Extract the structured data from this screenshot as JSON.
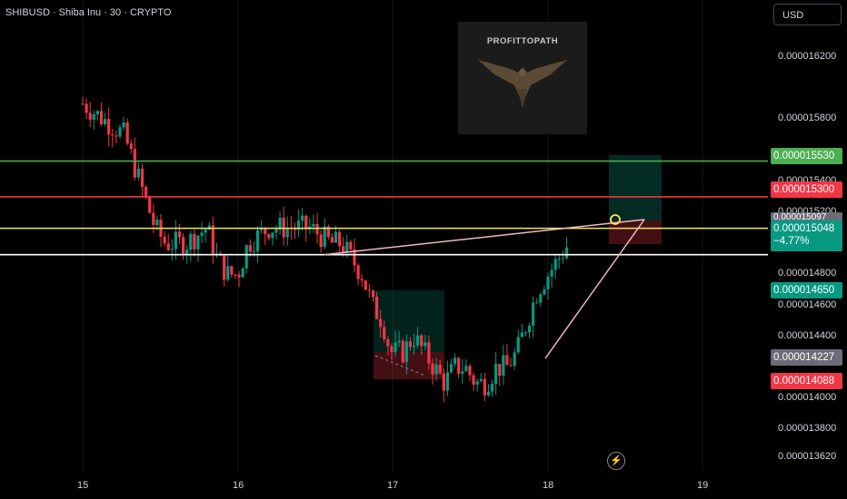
{
  "header": {
    "title": "SHIBUSD · Shiba Inu · 30 · CRYPTO",
    "currency": "USD"
  },
  "logo": {
    "text": "PROFITTOPATH"
  },
  "colors": {
    "up": "#089981",
    "down": "#f23645",
    "green_line": "#4caf50",
    "red_line": "#f23645",
    "yellow_line": "#f5e663",
    "white_line": "#ffffff",
    "background": "#000000"
  },
  "chart_data": {
    "type": "candlestick",
    "symbol": "SHIBUSD",
    "timeframe": "30",
    "xlabel": "",
    "ylabel": "",
    "x_ticks": [
      "15",
      "16",
      "17",
      "18",
      "19"
    ],
    "y_ticks": [
      "0.000016200",
      "0.000015800",
      "0.000015400",
      "0.000015200",
      "0.000014800",
      "0.000014600",
      "0.000014400",
      "0.000014000",
      "0.000013800",
      "0.000013620"
    ],
    "ylim": [
      1.35e-05,
      1.65e-05
    ],
    "horizontal_levels": [
      {
        "value": 1.553e-05,
        "label": "0.000015530",
        "color": "green"
      },
      {
        "value": 1.53e-05,
        "label": "0.000015300",
        "color": "red"
      },
      {
        "value": 1.5097e-05,
        "label": "0.000015097",
        "color": "yellow"
      },
      {
        "value": 1.4927e-05,
        "label": "",
        "color": "white"
      }
    ],
    "price_labels": [
      {
        "value": 1.465e-05,
        "text": "0.000014650",
        "color": "#089981"
      },
      {
        "value": 1.4227e-05,
        "text": "0.000014227",
        "color": "#6a6d78"
      },
      {
        "value": 1.4088e-05,
        "text": "0.000014088",
        "color": "#f23645"
      }
    ],
    "last_price": {
      "value": 1.5048e-05,
      "change": "−4.77%"
    },
    "candle_path": [
      [
        0,
        1.59e-05
      ],
      [
        4,
        1.58e-05
      ],
      [
        8,
        1.57e-05
      ],
      [
        10,
        1.55e-05
      ],
      [
        14,
        1.51e-05
      ],
      [
        16,
        1.5e-05
      ],
      [
        20,
        1.5e-05
      ],
      [
        24,
        1.51e-05
      ],
      [
        26,
        1.49e-05
      ],
      [
        28,
        1.48e-05
      ],
      [
        30,
        1.48e-05
      ],
      [
        32,
        1.5e-05
      ],
      [
        36,
        1.51e-05
      ],
      [
        40,
        1.51e-05
      ],
      [
        44,
        1.51e-05
      ],
      [
        48,
        1.5e-05
      ],
      [
        50,
        1.5e-05
      ],
      [
        52,
        1.49e-05
      ],
      [
        54,
        1.48e-05
      ],
      [
        56,
        1.46e-05
      ],
      [
        58,
        1.45e-05
      ],
      [
        59.5,
        1.43e-05
      ],
      [
        62,
        1.43e-05
      ],
      [
        64,
        1.44e-05
      ],
      [
        66,
        1.43e-05
      ],
      [
        68,
        1.42e-05
      ],
      [
        70,
        1.41e-05
      ],
      [
        72,
        1.42e-05
      ],
      [
        74,
        1.42e-05
      ],
      [
        76,
        1.41e-05
      ],
      [
        78,
        1.41e-05
      ],
      [
        80,
        1.42e-05
      ],
      [
        82,
        1.42e-05
      ],
      [
        84,
        1.43e-05
      ],
      [
        86,
        1.45e-05
      ],
      [
        88,
        1.47e-05
      ],
      [
        90,
        1.48e-05
      ],
      [
        92,
        1.49e-05
      ],
      [
        94,
        1.5e-05
      ]
    ]
  },
  "axis_labels": {
    "green": "0.000015530",
    "red": "0.000015300",
    "yellow": "0.000015097",
    "last": "0.000015048",
    "change": "−4.77%",
    "mid_green": "0.000014650",
    "gray": "0.000014227",
    "low_red": "0.000014088"
  }
}
